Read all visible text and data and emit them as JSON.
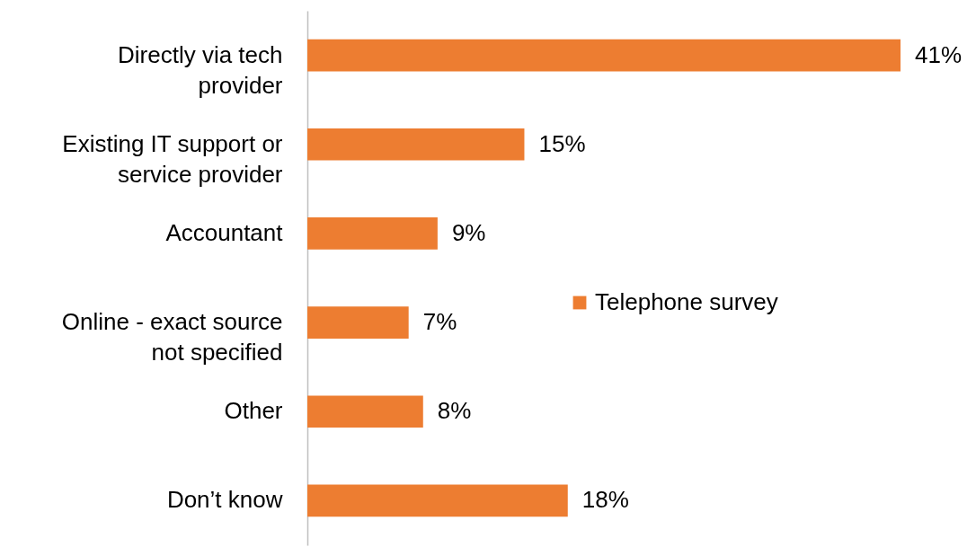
{
  "chart_data": {
    "type": "bar",
    "orientation": "horizontal",
    "categories": [
      "Directly via tech provider",
      "Existing IT support or service provider",
      "Accountant",
      "Online - exact source not specified",
      "Other",
      "Don’t know"
    ],
    "series": [
      {
        "name": "Telephone survey",
        "color": "#ed7d31",
        "values": [
          41,
          15,
          9,
          7,
          8,
          18
        ],
        "value_labels": [
          "41%",
          "15%",
          "9%",
          "7%",
          "8%",
          "18%"
        ]
      }
    ],
    "legend": "right"
  }
}
